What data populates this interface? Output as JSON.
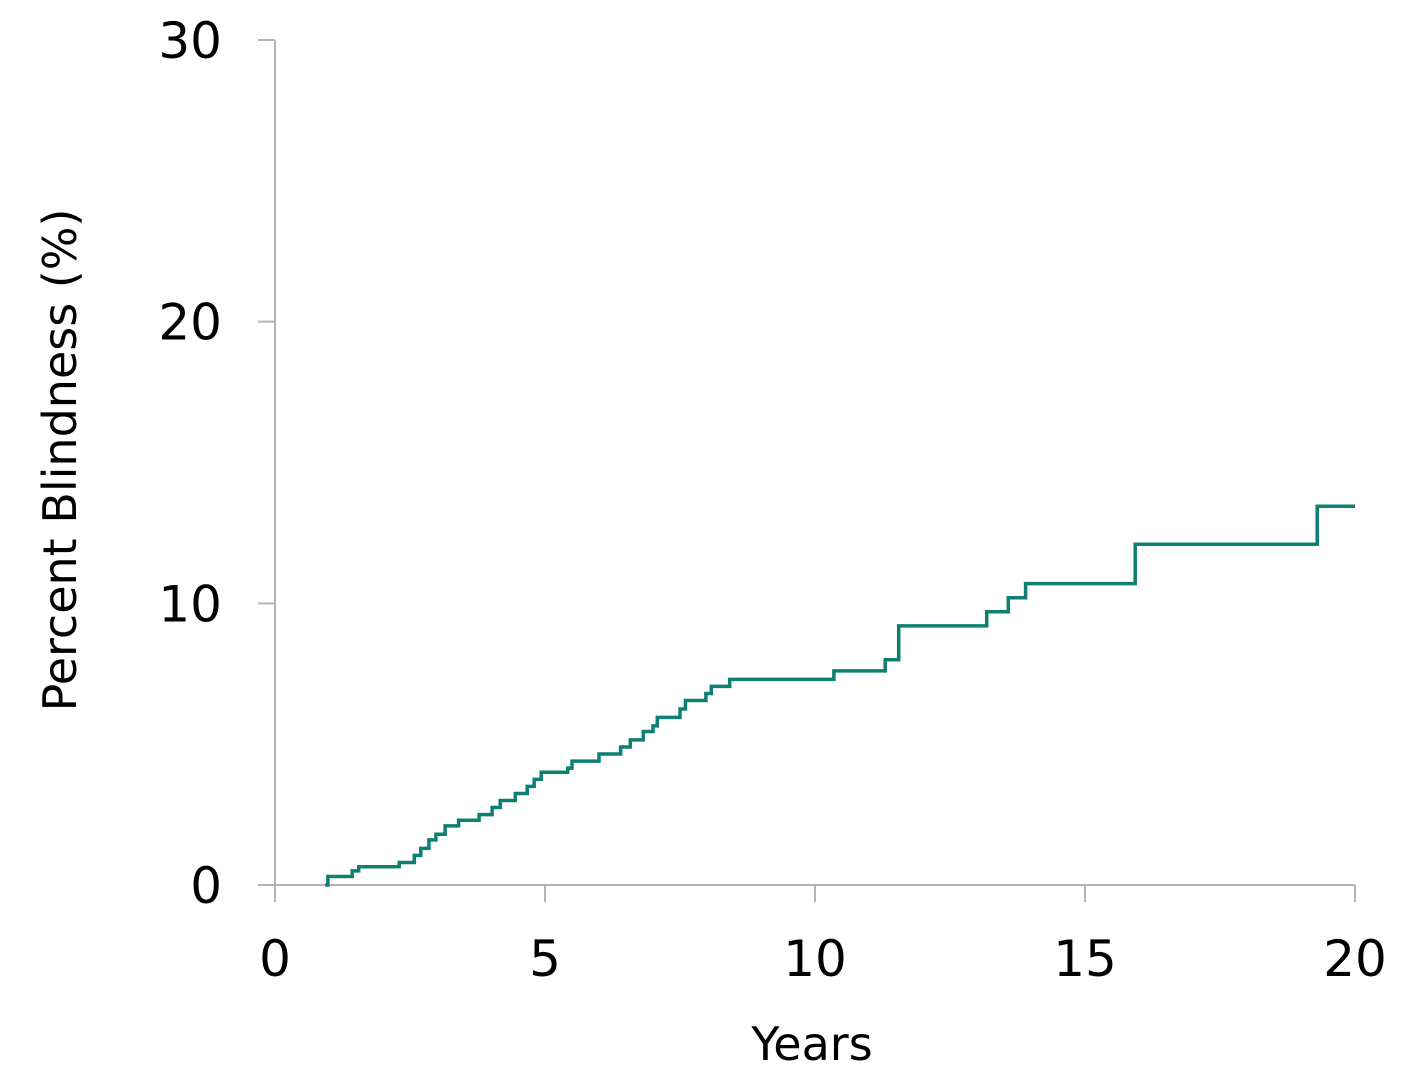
{
  "chart_data": {
    "type": "line",
    "step": true,
    "xlabel": "Years",
    "ylabel": "Percent Blindness (%)",
    "xlim": [
      0,
      20
    ],
    "ylim": [
      0,
      30
    ],
    "xticks": [
      0,
      5,
      10,
      15,
      20
    ],
    "yticks": [
      0,
      10,
      20,
      30
    ],
    "grid": false,
    "series": [
      {
        "color": "#0e8071",
        "x": [
          0.93,
          0.98,
          1.43,
          1.55,
          2.3,
          2.58,
          2.7,
          2.85,
          2.98,
          3.15,
          3.4,
          3.78,
          4.02,
          4.17,
          4.45,
          4.67,
          4.8,
          4.93,
          5.42,
          5.5,
          6.0,
          6.4,
          6.58,
          6.82,
          7.0,
          7.08,
          7.5,
          7.6,
          7.98,
          8.08,
          8.42,
          10.35,
          11.3,
          11.55,
          13.18,
          13.58,
          13.9,
          15.93,
          19.3,
          20.0
        ],
        "y": [
          0,
          0.3,
          0.5,
          0.65,
          0.8,
          1.05,
          1.3,
          1.6,
          1.8,
          2.1,
          2.3,
          2.5,
          2.75,
          3.0,
          3.25,
          3.5,
          3.75,
          4.0,
          4.15,
          4.4,
          4.65,
          4.9,
          5.15,
          5.45,
          5.65,
          5.95,
          6.25,
          6.55,
          6.8,
          7.05,
          7.3,
          7.6,
          8.0,
          9.2,
          9.7,
          10.2,
          10.7,
          12.1,
          13.45,
          13.45
        ]
      }
    ]
  }
}
